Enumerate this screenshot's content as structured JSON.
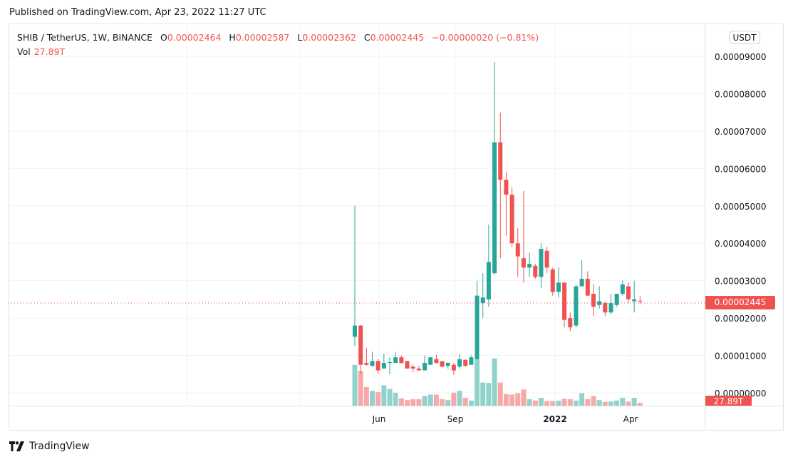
{
  "header": {
    "published": "Published on TradingView.com, Apr 23, 2022 11:27 UTC"
  },
  "legend": {
    "symbol": "SHIB / TetherUS, 1W, BINANCE",
    "o_label": "O",
    "o_value": "0.00002464",
    "h_label": "H",
    "h_value": "0.00002587",
    "l_label": "L",
    "l_value": "0.00002362",
    "c_label": "C",
    "c_value": "0.00002445",
    "change": "−0.00000020 (−0.81%)",
    "vol_label": "Vol",
    "vol_value": "27.89T"
  },
  "price_axis": {
    "currency": "USDT",
    "last_price_tag": "0.00002445",
    "volume_tag": "27.89T"
  },
  "footer": {
    "brand": "TradingView"
  },
  "colors": {
    "up": "#26a69a",
    "down": "#ef5350",
    "up_volume": "#92d2cc",
    "down_volume": "#f7a9a7",
    "grid": "#f0f3fa"
  },
  "chart_data": {
    "type": "candlestick",
    "title": "SHIB / TetherUS, 1W, BINANCE",
    "unit_note": "prices in units of 1e-5 USDT",
    "xlabel": "",
    "ylabel": "USDT",
    "x_tick_labels": [
      "Jun",
      "Sep",
      "2022",
      "Apr"
    ],
    "y_tick_labels": [
      "0.00009000",
      "0.00008000",
      "0.00007000",
      "0.00006000",
      "0.00005000",
      "0.00004000",
      "0.00003000",
      "0.00002000",
      "0.00001000",
      "0.00000000"
    ],
    "ylim": [
      0,
      9e-05
    ],
    "grid": true,
    "last_price": 2.445e-05,
    "last_volume": "27.89T",
    "candles": [
      {
        "o": 1.5,
        "h": 5.0,
        "l": 1.25,
        "c": 1.8,
        "v": 88
      },
      {
        "o": 1.8,
        "h": 1.82,
        "l": 0.5,
        "c": 0.75,
        "v": 75
      },
      {
        "o": 0.8,
        "h": 1.2,
        "l": 0.72,
        "c": 0.75,
        "v": 40
      },
      {
        "o": 0.72,
        "h": 1.1,
        "l": 0.7,
        "c": 0.85,
        "v": 32
      },
      {
        "o": 0.85,
        "h": 0.9,
        "l": 0.5,
        "c": 0.6,
        "v": 29
      },
      {
        "o": 0.65,
        "h": 1.05,
        "l": 0.65,
        "c": 0.8,
        "v": 44
      },
      {
        "o": 0.8,
        "h": 0.95,
        "l": 0.5,
        "c": 0.82,
        "v": 36
      },
      {
        "o": 0.8,
        "h": 1.1,
        "l": 0.8,
        "c": 0.95,
        "v": 28
      },
      {
        "o": 0.95,
        "h": 1.0,
        "l": 0.78,
        "c": 0.8,
        "v": 16
      },
      {
        "o": 0.85,
        "h": 0.85,
        "l": 0.65,
        "c": 0.65,
        "v": 12
      },
      {
        "o": 0.7,
        "h": 0.75,
        "l": 0.55,
        "c": 0.65,
        "v": 14
      },
      {
        "o": 0.65,
        "h": 0.72,
        "l": 0.6,
        "c": 0.6,
        "v": 14
      },
      {
        "o": 0.6,
        "h": 1.0,
        "l": 0.6,
        "c": 0.8,
        "v": 21
      },
      {
        "o": 0.75,
        "h": 0.95,
        "l": 0.75,
        "c": 0.95,
        "v": 24
      },
      {
        "o": 0.9,
        "h": 1.02,
        "l": 0.78,
        "c": 0.8,
        "v": 24
      },
      {
        "o": 0.85,
        "h": 0.85,
        "l": 0.68,
        "c": 0.7,
        "v": 14
      },
      {
        "o": 0.72,
        "h": 0.82,
        "l": 0.65,
        "c": 0.8,
        "v": 12
      },
      {
        "o": 0.75,
        "h": 0.8,
        "l": 0.48,
        "c": 0.6,
        "v": 28
      },
      {
        "o": 0.7,
        "h": 1.05,
        "l": 0.65,
        "c": 0.9,
        "v": 32
      },
      {
        "o": 0.88,
        "h": 0.9,
        "l": 0.7,
        "c": 0.72,
        "v": 17
      },
      {
        "o": 0.75,
        "h": 1.0,
        "l": 0.75,
        "c": 0.95,
        "v": 11
      },
      {
        "o": 0.9,
        "h": 3.0,
        "l": 0.9,
        "c": 2.6,
        "v": 100
      },
      {
        "o": 2.4,
        "h": 3.2,
        "l": 2.0,
        "c": 2.55,
        "v": 50
      },
      {
        "o": 2.5,
        "h": 4.5,
        "l": 2.3,
        "c": 3.5,
        "v": 49
      },
      {
        "o": 3.2,
        "h": 8.85,
        "l": 3.15,
        "c": 6.7,
        "v": 102
      },
      {
        "o": 6.7,
        "h": 7.5,
        "l": 3.6,
        "c": 5.7,
        "v": 50
      },
      {
        "o": 5.7,
        "h": 5.9,
        "l": 4.2,
        "c": 5.3,
        "v": 25
      },
      {
        "o": 5.3,
        "h": 5.5,
        "l": 3.9,
        "c": 4.0,
        "v": 24
      },
      {
        "o": 4.0,
        "h": 4.4,
        "l": 3.1,
        "c": 3.65,
        "v": 27
      },
      {
        "o": 3.6,
        "h": 5.4,
        "l": 2.95,
        "c": 3.35,
        "v": 35
      },
      {
        "o": 3.35,
        "h": 3.75,
        "l": 3.1,
        "c": 3.45,
        "v": 14
      },
      {
        "o": 3.4,
        "h": 3.45,
        "l": 3.05,
        "c": 3.1,
        "v": 11
      },
      {
        "o": 3.1,
        "h": 4.0,
        "l": 2.8,
        "c": 3.85,
        "v": 17
      },
      {
        "o": 3.8,
        "h": 3.9,
        "l": 3.2,
        "c": 3.35,
        "v": 10
      },
      {
        "o": 3.3,
        "h": 3.35,
        "l": 2.6,
        "c": 2.7,
        "v": 10
      },
      {
        "o": 2.7,
        "h": 3.35,
        "l": 2.55,
        "c": 2.95,
        "v": 11
      },
      {
        "o": 2.95,
        "h": 2.95,
        "l": 1.75,
        "c": 1.95,
        "v": 15
      },
      {
        "o": 2.0,
        "h": 2.15,
        "l": 1.65,
        "c": 1.75,
        "v": 14
      },
      {
        "o": 1.8,
        "h": 2.9,
        "l": 1.75,
        "c": 2.85,
        "v": 11
      },
      {
        "o": 2.85,
        "h": 3.55,
        "l": 2.85,
        "c": 3.05,
        "v": 27
      },
      {
        "o": 3.05,
        "h": 3.25,
        "l": 2.6,
        "c": 2.6,
        "v": 14
      },
      {
        "o": 2.65,
        "h": 2.9,
        "l": 2.05,
        "c": 2.3,
        "v": 21
      },
      {
        "o": 2.35,
        "h": 2.85,
        "l": 2.25,
        "c": 2.45,
        "v": 12
      },
      {
        "o": 2.4,
        "h": 2.45,
        "l": 2.05,
        "c": 2.15,
        "v": 8
      },
      {
        "o": 2.15,
        "h": 2.65,
        "l": 2.1,
        "c": 2.4,
        "v": 9
      },
      {
        "o": 2.35,
        "h": 2.65,
        "l": 2.3,
        "c": 2.65,
        "v": 11
      },
      {
        "o": 2.65,
        "h": 3.0,
        "l": 2.6,
        "c": 2.9,
        "v": 17
      },
      {
        "o": 2.85,
        "h": 2.95,
        "l": 2.4,
        "c": 2.5,
        "v": 9
      },
      {
        "o": 2.45,
        "h": 3.0,
        "l": 2.15,
        "c": 2.5,
        "v": 17
      },
      {
        "o": 2.464,
        "h": 2.587,
        "l": 2.362,
        "c": 2.445,
        "v": 6
      }
    ]
  }
}
